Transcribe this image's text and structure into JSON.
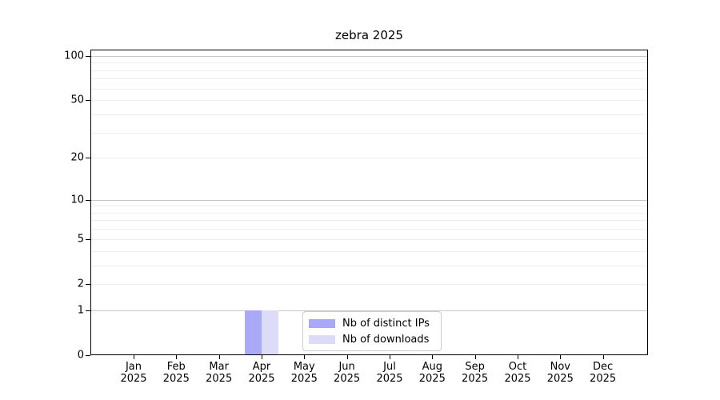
{
  "chart_data": {
    "type": "bar",
    "title": "zebra 2025",
    "categories": [
      "Jan 2025",
      "Feb 2025",
      "Mar 2025",
      "Apr 2025",
      "May 2025",
      "Jun 2025",
      "Jul 2025",
      "Aug 2025",
      "Sep 2025",
      "Oct 2025",
      "Nov 2025",
      "Dec 2025"
    ],
    "series": [
      {
        "name": "Nb of distinct IPs",
        "color": "#a9a9f7",
        "values": [
          0,
          0,
          0,
          1,
          0,
          0,
          0,
          0,
          0,
          0,
          0,
          0
        ]
      },
      {
        "name": "Nb of downloads",
        "color": "#dcdcf9",
        "values": [
          0,
          0,
          0,
          1,
          0,
          0,
          0,
          0,
          0,
          0,
          0,
          0
        ]
      }
    ],
    "xlabel": "",
    "ylabel": "",
    "yscale": "log1p",
    "ylim": [
      0,
      110
    ],
    "yticks": [
      0,
      1,
      2,
      5,
      10,
      20,
      50,
      100
    ],
    "major_gridlines": [
      1,
      10,
      100
    ],
    "minor_gridlines": [
      2,
      3,
      4,
      5,
      6,
      7,
      8,
      9,
      20,
      30,
      40,
      50,
      60,
      70,
      80,
      90
    ],
    "grid": true,
    "legend_position": "lower-center",
    "colors": {
      "axis": "#000000",
      "grid_major": "#c7c7c7",
      "grid_minor": "#eeeeee",
      "legend_border": "#cccccc",
      "background": "#ffffff"
    }
  }
}
